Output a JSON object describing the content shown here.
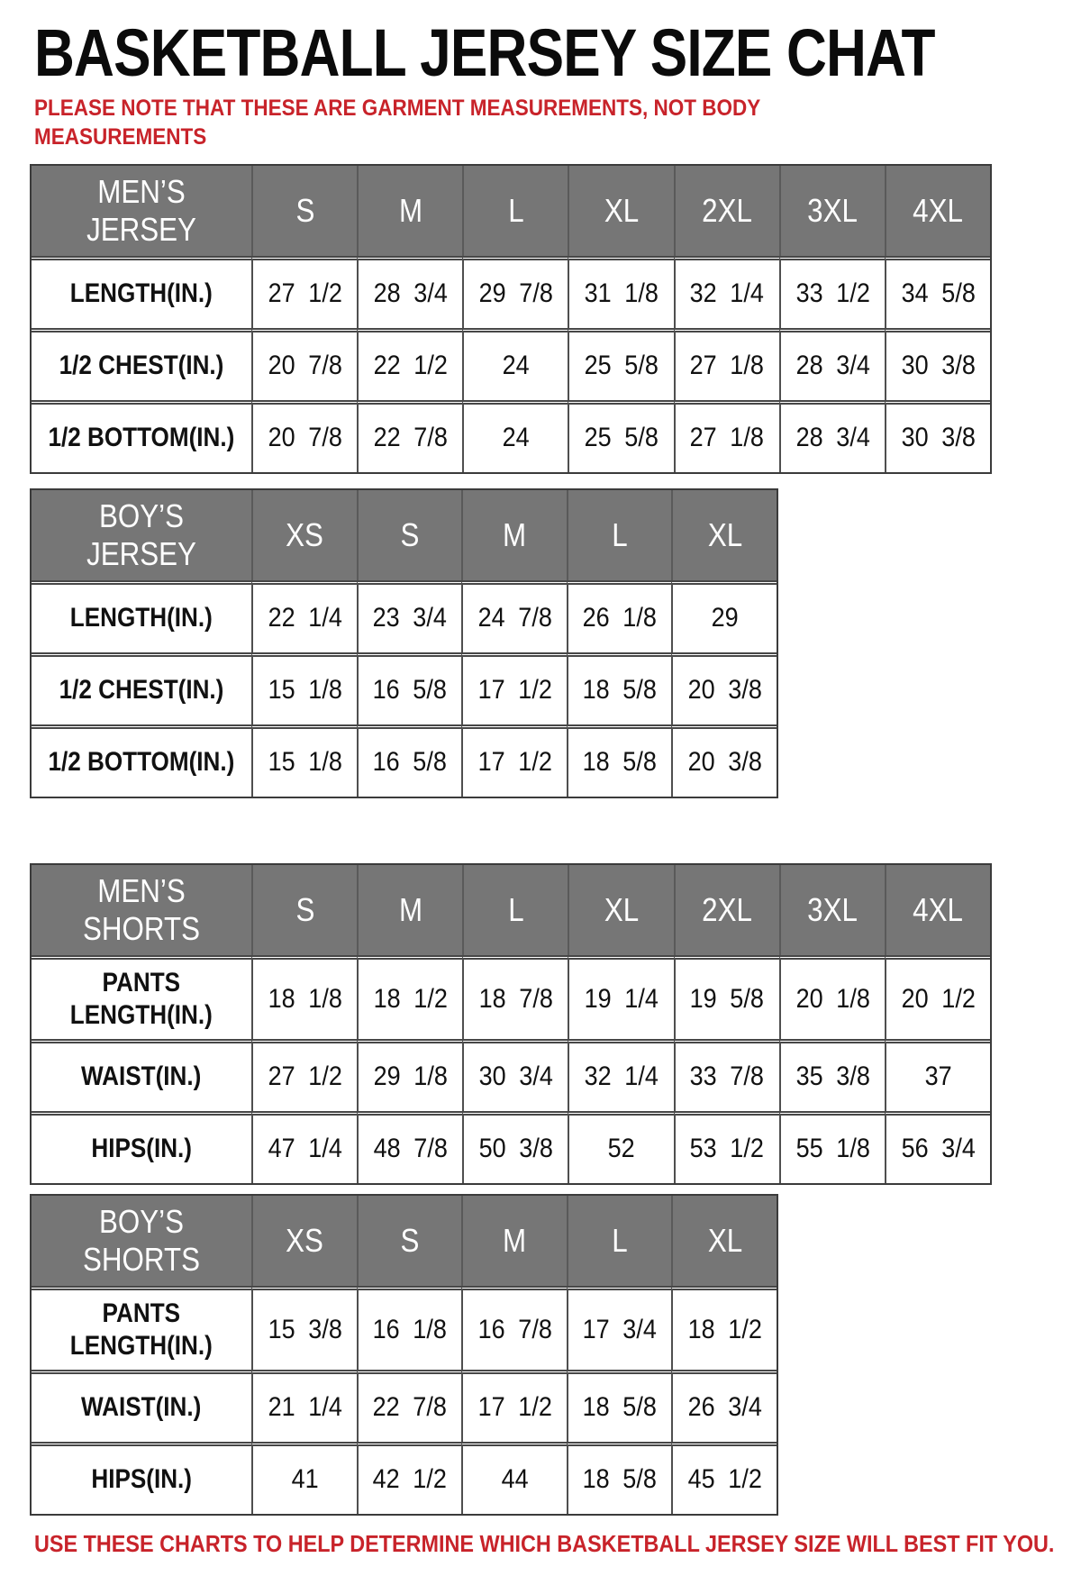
{
  "page": {
    "title": "BASKETBALL JERSEY SIZE CHAT",
    "note_lines": [
      "PLEASE NOTE THAT THESE ARE GARMENT MEASUREMENTS, NOT BODY",
      "MEASUREMENTS"
    ],
    "footer": "USE THESE CHARTS TO HELP DETERMINE WHICH BASKETBALL JERSEY SIZE WILL BEST FIT YOU."
  },
  "colors": {
    "accent_red": "#c8232a",
    "header_bg": "#767676",
    "header_text": "#ffffff",
    "border": "#4f4f4f",
    "text": "#111111"
  },
  "tables": [
    {
      "id": "mens-jersey",
      "header": [
        "MEN’S JERSEY",
        "S",
        "M",
        "L",
        "XL",
        "2XL",
        "3XL",
        "4XL"
      ],
      "rows": [
        [
          "LENGTH(IN.)",
          "27 1/2",
          "28 3/4",
          "29 7/8",
          "31 1/8",
          "32 1/4",
          "33 1/2",
          "34 5/8"
        ],
        [
          "1/2 CHEST(IN.)",
          "20 7/8",
          "22 1/2",
          "24",
          "25 5/8",
          "27 1/8",
          "28 3/4",
          "30 3/8"
        ],
        [
          "1/2 BOTTOM(IN.)",
          "20 7/8",
          "22 7/8",
          "24",
          "25 5/8",
          "27 1/8",
          "28 3/4",
          "30 3/8"
        ]
      ]
    },
    {
      "id": "boys-jersey",
      "header": [
        "BOY’S JERSEY",
        "XS",
        "S",
        "M",
        "L",
        "XL"
      ],
      "rows": [
        [
          "LENGTH(IN.)",
          "22 1/4",
          "23 3/4",
          "24 7/8",
          "26 1/8",
          "29"
        ],
        [
          "1/2 CHEST(IN.)",
          "15 1/8",
          "16 5/8",
          "17 1/2",
          "18 5/8",
          "20 3/8"
        ],
        [
          "1/2 BOTTOM(IN.)",
          "15 1/8",
          "16 5/8",
          "17 1/2",
          "18 5/8",
          "20 3/8"
        ]
      ]
    },
    {
      "id": "mens-shorts",
      "header": [
        "MEN’S SHORTS",
        "S",
        "M",
        "L",
        "XL",
        "2XL",
        "3XL",
        "4XL"
      ],
      "rows": [
        [
          "PANTS\nLENGTH(IN.)",
          "18 1/8",
          "18 1/2",
          "18 7/8",
          "19 1/4",
          "19 5/8",
          "20 1/8",
          "20 1/2"
        ],
        [
          "WAIST(IN.)",
          "27 1/2",
          "29 1/8",
          "30 3/4",
          "32 1/4",
          "33 7/8",
          "35 3/8",
          "37"
        ],
        [
          "HIPS(IN.)",
          "47 1/4",
          "48 7/8",
          "50 3/8",
          "52",
          "53 1/2",
          "55 1/8",
          "56 3/4"
        ]
      ]
    },
    {
      "id": "boys-shorts",
      "header": [
        "BOY’S SHORTS",
        "XS",
        "S",
        "M",
        "L",
        "XL"
      ],
      "rows": [
        [
          "PANTS\nLENGTH(IN.)",
          "15 3/8",
          "16 1/8",
          "16 7/8",
          "17 3/4",
          "18 1/2"
        ],
        [
          "WAIST(IN.)",
          "21 1/4",
          "22 7/8",
          "17 1/2",
          "18 5/8",
          "26 3/4"
        ],
        [
          "HIPS(IN.)",
          "41",
          "42 1/2",
          "44",
          "18 5/8",
          "45 1/2"
        ]
      ]
    }
  ]
}
